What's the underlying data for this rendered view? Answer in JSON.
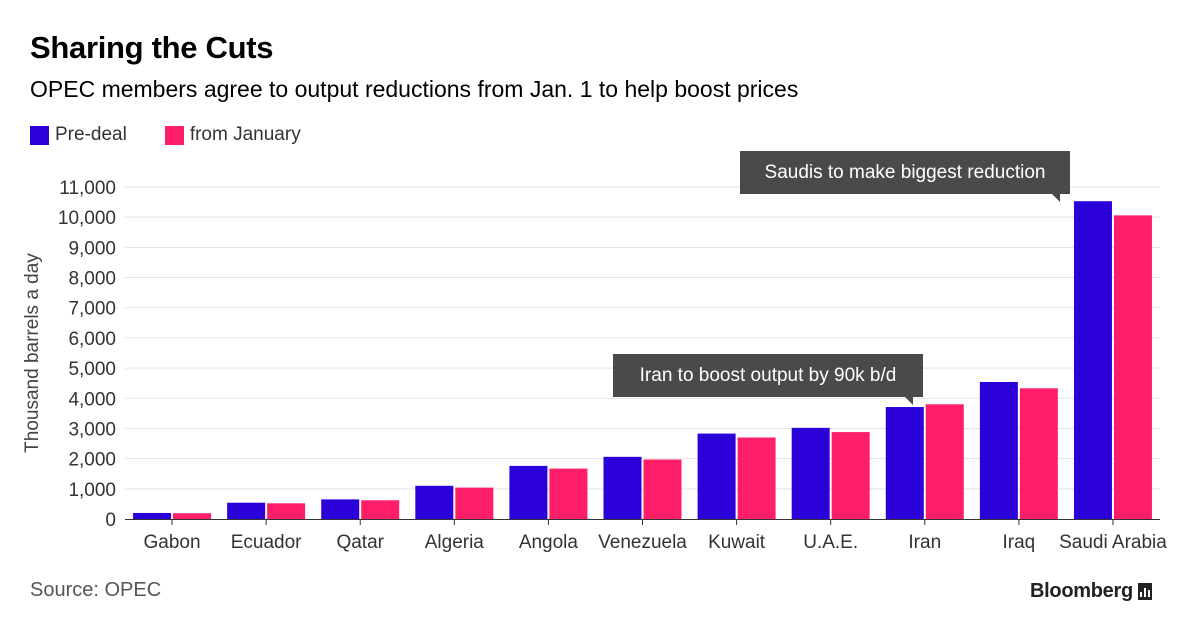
{
  "title": "Sharing the Cuts",
  "subtitle": "OPEC members agree to output reductions from Jan. 1 to help boost prices",
  "source": "Source: OPEC",
  "brand": "Bloomberg",
  "chart_data": {
    "type": "bar",
    "ylabel": "Thousand barrels a day",
    "xlabel": "",
    "ylim": [
      0,
      11000
    ],
    "yticks": [
      0,
      1000,
      2000,
      3000,
      4000,
      5000,
      6000,
      7000,
      8000,
      9000,
      10000,
      11000
    ],
    "ytick_labels": [
      "0",
      "1,000",
      "2,000",
      "3,000",
      "4,000",
      "5,000",
      "6,000",
      "7,000",
      "8,000",
      "9,000",
      "10,000",
      "11,000"
    ],
    "grid": true,
    "legend_position": "top-left",
    "categories": [
      "Gabon",
      "Ecuador",
      "Qatar",
      "Algeria",
      "Angola",
      "Venezuela",
      "Kuwait",
      "U.A.E.",
      "Iran",
      "Iraq",
      "Saudi Arabia"
    ],
    "series": [
      {
        "name": "Pre-deal",
        "color": "#2b00d9",
        "values": [
          200,
          540,
          650,
          1100,
          1760,
          2060,
          2830,
          3020,
          3710,
          4540,
          10530
        ]
      },
      {
        "name": "from January",
        "color": "#ff1f68",
        "values": [
          190,
          520,
          620,
          1040,
          1670,
          1970,
          2700,
          2880,
          3800,
          4330,
          10060
        ]
      }
    ],
    "annotations": [
      {
        "text": "Saudis to make biggest reduction",
        "category": "Saudi Arabia"
      },
      {
        "text": "Iran to boost output by 90k b/d",
        "category": "Iran"
      }
    ]
  }
}
